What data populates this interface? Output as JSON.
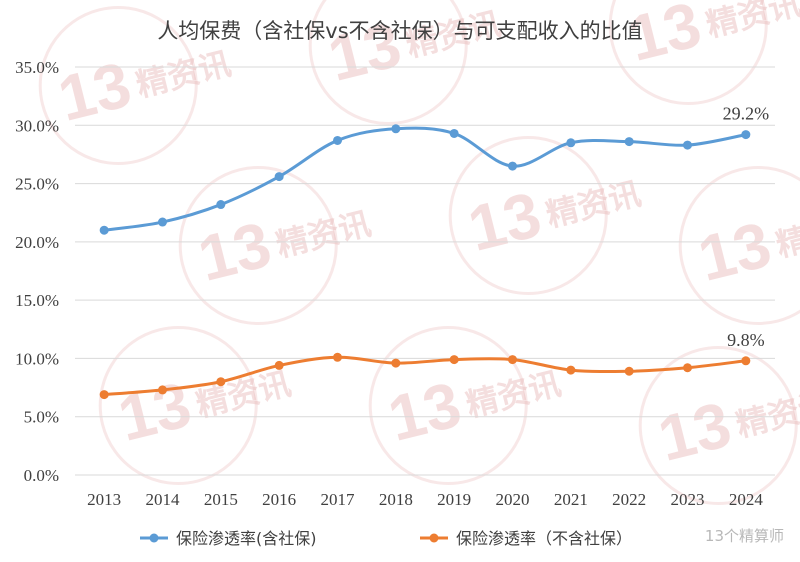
{
  "chart_data": {
    "type": "line",
    "title": "人均保费（含社保vs不含社保）与可支配收入的比值",
    "categories": [
      "2013",
      "2014",
      "2015",
      "2016",
      "2017",
      "2018",
      "2019",
      "2020",
      "2021",
      "2022",
      "2023",
      "2024"
    ],
    "ylim": [
      0,
      35
    ],
    "yticks": [
      "0.0%",
      "5.0%",
      "10.0%",
      "15.0%",
      "20.0%",
      "25.0%",
      "30.0%",
      "35.0%"
    ],
    "grid": true,
    "legend_position": "bottom",
    "series": [
      {
        "name": "保险渗透率(含社保)",
        "color": "#5B9BD5",
        "values": [
          21.0,
          21.7,
          23.2,
          25.6,
          28.7,
          29.7,
          29.3,
          26.5,
          28.5,
          28.6,
          28.3,
          29.2
        ],
        "end_label": "29.2%"
      },
      {
        "name": "保险渗透率（不含社保）",
        "color": "#ED7D31",
        "values": [
          6.9,
          7.3,
          8.0,
          9.4,
          10.1,
          9.6,
          9.9,
          9.9,
          9.0,
          8.9,
          9.2,
          9.8
        ],
        "end_label": "9.8%"
      }
    ]
  },
  "watermark": {
    "number": "13",
    "text": "精资讯",
    "footer": "13个精算师"
  }
}
